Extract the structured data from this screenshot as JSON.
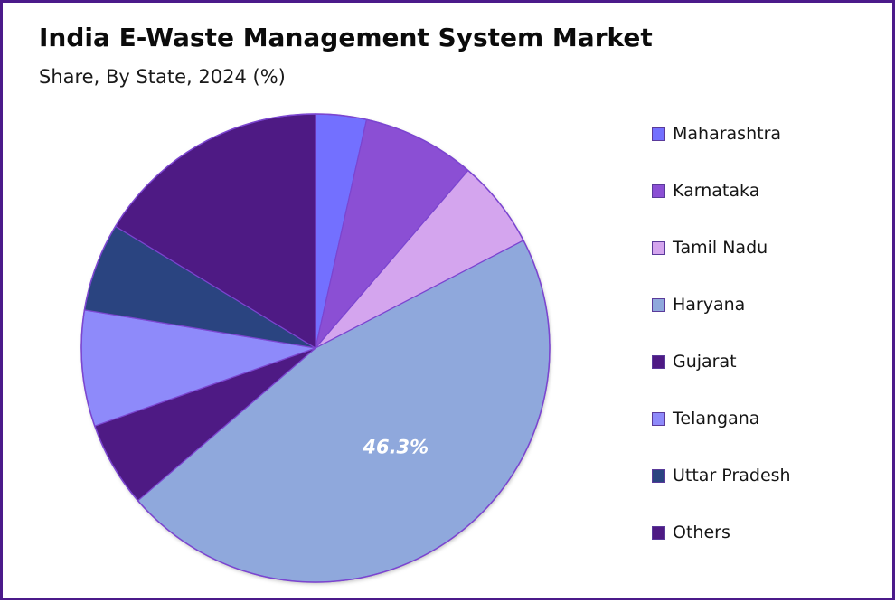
{
  "header": {
    "title": "India E-Waste Management System Market",
    "subtitle": "Share, By State, 2024 (%)"
  },
  "frame": {
    "border_color": "#4B1A8A"
  },
  "chart_data": {
    "type": "pie",
    "title": "India E-Waste Management System Market",
    "subtitle": "Share, By State, 2024 (%)",
    "start_angle_deg": 0,
    "direction": "clockwise",
    "legend_position": "right",
    "categories": [
      "Maharashtra",
      "Karnataka",
      "Tamil Nadu",
      "Haryana",
      "Gujarat",
      "Telangana",
      "Uttar Pradesh",
      "Others"
    ],
    "values": [
      3.5,
      7.8,
      6.1,
      46.3,
      5.9,
      8.0,
      6.1,
      16.3
    ],
    "colors": [
      "#7370FF",
      "#8B4FD4",
      "#D4A5EE",
      "#8FA8DC",
      "#4E1A84",
      "#8E8AFA",
      "#2A4480",
      "#4E1A84"
    ],
    "annotations": [
      {
        "category": "Haryana",
        "text": "46.3%"
      }
    ]
  },
  "legend": {
    "items": [
      {
        "label": "Maharashtra",
        "color": "#7370FF"
      },
      {
        "label": "Karnataka",
        "color": "#8B4FD4"
      },
      {
        "label": "Tamil Nadu",
        "color": "#D4A5EE"
      },
      {
        "label": "Haryana",
        "color": "#8FA8DC"
      },
      {
        "label": "Gujarat",
        "color": "#4E1A84"
      },
      {
        "label": "Telangana",
        "color": "#8E8AFA"
      },
      {
        "label": "Uttar Pradesh",
        "color": "#2A4480"
      },
      {
        "label": "Others",
        "color": "#4E1A84"
      }
    ]
  }
}
